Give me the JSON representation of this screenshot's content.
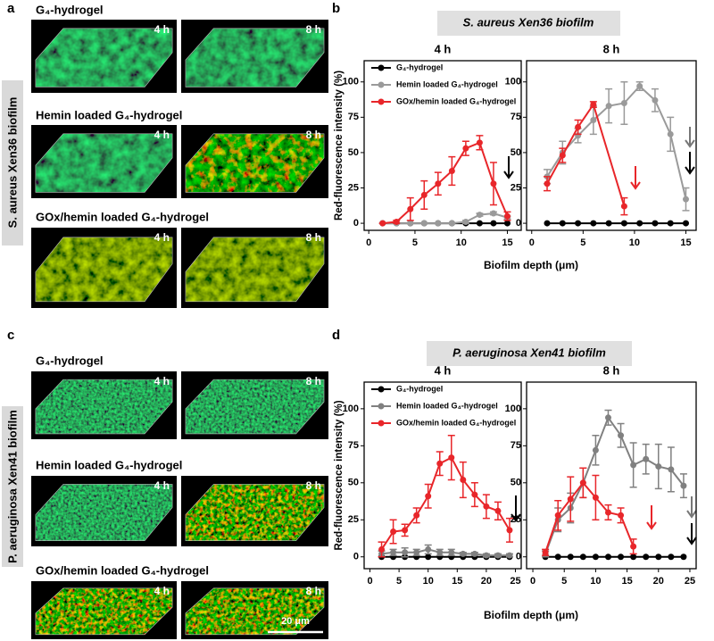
{
  "panel_a": {
    "label": "a",
    "side_label": "S. aureus Xen36 biofilm",
    "rows": [
      {
        "title": "G₄-hydrogel",
        "times": [
          "4 h",
          "8 h"
        ]
      },
      {
        "title": "Hemin loaded G₄-hydrogel",
        "times": [
          "4 h",
          "8 h"
        ]
      },
      {
        "title": "GOx/hemin loaded G₄-hydrogel",
        "times": [
          "4 h",
          "8 h"
        ]
      }
    ]
  },
  "panel_c": {
    "label": "c",
    "side_label": "P. aeruginosa Xen41 biofilm",
    "scale_bar": "20 μm",
    "rows": [
      {
        "title": "G₄-hydrogel",
        "times": [
          "4 h",
          "8 h"
        ]
      },
      {
        "title": "Hemin loaded G₄-hydrogel",
        "times": [
          "4 h",
          "8 h"
        ]
      },
      {
        "title": "GOx/hemin loaded G₄-hydrogel",
        "times": [
          "4 h",
          "8 h"
        ]
      }
    ]
  },
  "figure": {
    "b": {
      "label": "b",
      "title": "S. aureus Xen36 biofilm",
      "x_label": "Biofilm depth (μm)"
    },
    "d": {
      "label": "d",
      "title": "P. aeruginosa Xen41 biofilm",
      "x_label": "Biofilm depth (μm)"
    }
  },
  "chart_data": [
    {
      "type": "line",
      "title": "4 h",
      "ylabel": "Red-fluorescence intensity  (%)",
      "legend": true,
      "x": [
        1.5,
        3,
        4.5,
        6,
        7.5,
        9,
        10.5,
        12,
        13.5,
        15
      ],
      "xlim": [
        -0.5,
        16.5
      ],
      "xticks": [
        0,
        5,
        10,
        15
      ],
      "ylim": [
        -5,
        115
      ],
      "yticks": [
        0,
        25,
        50,
        75,
        100
      ],
      "series": [
        {
          "name": "G₄-hydrogel",
          "color": "#000000",
          "values": [
            0,
            0,
            0,
            0,
            0,
            0,
            0,
            0,
            0,
            0
          ]
        },
        {
          "name": "Hemin loaded G₄-hydrogel",
          "color": "#9a9a9a",
          "values": [
            0,
            0,
            0,
            0,
            0,
            0,
            1,
            6,
            7,
            4
          ],
          "errors": [
            0,
            0,
            0,
            0,
            0,
            0,
            1,
            1,
            1,
            1
          ]
        },
        {
          "name": "GOx/hemin loaded G₄-hydrogel",
          "color": "#e8262a",
          "values": [
            0,
            1,
            10,
            20,
            28,
            37,
            53,
            57,
            28,
            5
          ],
          "errors": [
            0,
            1,
            8,
            10,
            8,
            10,
            5,
            5,
            15,
            3
          ]
        }
      ]
    },
    {
      "type": "line",
      "title": "8 h",
      "x": [
        1.5,
        3,
        4.5,
        6,
        7.5,
        9,
        10.5,
        12,
        13.5,
        15
      ],
      "xlim": [
        -0.5,
        16
      ],
      "xticks": [
        0,
        5,
        10,
        15
      ],
      "ylim": [
        -5,
        115
      ],
      "yticks": [
        0,
        25,
        50,
        75,
        100
      ],
      "series": [
        {
          "color": "#000000",
          "values": [
            0,
            0,
            0,
            0,
            0,
            0,
            0,
            0,
            0,
            0
          ]
        },
        {
          "color": "#9a9a9a",
          "values": [
            33,
            50,
            62,
            73,
            83,
            85,
            97,
            87,
            63,
            17
          ],
          "errors": [
            5,
            8,
            5,
            10,
            12,
            15,
            3,
            8,
            12,
            8
          ]
        },
        {
          "color": "#e8262a",
          "x": [
            1.5,
            3,
            4.5,
            6,
            9
          ],
          "values": [
            28,
            48,
            68,
            84,
            12
          ],
          "errors": [
            5,
            5,
            5,
            2,
            6
          ]
        }
      ]
    },
    {
      "type": "line",
      "title": "4 h",
      "ylabel": "Red-fluorescence intensity  (%)",
      "legend": true,
      "x": [
        2,
        4,
        6,
        8,
        10,
        12,
        14,
        16,
        18,
        20,
        22,
        24
      ],
      "xlim": [
        -1,
        26
      ],
      "xticks": [
        0,
        5,
        10,
        15,
        20,
        25
      ],
      "ylim": [
        -8,
        118
      ],
      "yticks": [
        0,
        25,
        50,
        75,
        100
      ],
      "series": [
        {
          "name": "G₄-hydrogel",
          "color": "#000000",
          "values": [
            0,
            0,
            0,
            0,
            0,
            0,
            0,
            0,
            0,
            0,
            0,
            0
          ]
        },
        {
          "name": "Hemin loaded G₄-hydrogel",
          "color": "#808080",
          "values": [
            2,
            3,
            3,
            3,
            5,
            3,
            3,
            2,
            2,
            1,
            1,
            1
          ],
          "errors": [
            2,
            2,
            3,
            2,
            3,
            2,
            2,
            1,
            1,
            1,
            1,
            1
          ]
        },
        {
          "name": "GOx/hemin loaded G₄-hydrogel",
          "color": "#e8262a",
          "values": [
            5,
            17,
            18,
            28,
            41,
            63,
            67,
            52,
            42,
            34,
            31,
            18
          ],
          "errors": [
            5,
            8,
            4,
            5,
            8,
            8,
            15,
            12,
            8,
            8,
            6,
            8
          ]
        }
      ]
    },
    {
      "type": "line",
      "title": "8 h",
      "x": [
        2,
        4,
        6,
        8,
        10,
        12,
        14,
        16,
        18,
        20,
        22,
        24
      ],
      "xlim": [
        -1,
        26
      ],
      "xticks": [
        0,
        5,
        10,
        15,
        20,
        25
      ],
      "ylim": [
        -8,
        118
      ],
      "yticks": [
        0,
        25,
        50,
        75,
        100
      ],
      "series": [
        {
          "color": "#000000",
          "values": [
            0,
            0,
            0,
            0,
            0,
            0,
            0,
            0,
            0,
            0,
            0,
            0
          ]
        },
        {
          "color": "#808080",
          "values": [
            2,
            25,
            33,
            50,
            72,
            94,
            82,
            62,
            66,
            61,
            59,
            48
          ],
          "errors": [
            2,
            8,
            10,
            10,
            10,
            5,
            8,
            15,
            10,
            15,
            15,
            8
          ]
        },
        {
          "color": "#e8262a",
          "x": [
            2,
            4,
            6,
            8,
            10,
            12,
            14,
            16
          ],
          "values": [
            3,
            28,
            39,
            50,
            40,
            30,
            28,
            7
          ],
          "errors": [
            2,
            10,
            15,
            10,
            15,
            5,
            5,
            5
          ]
        }
      ]
    }
  ]
}
